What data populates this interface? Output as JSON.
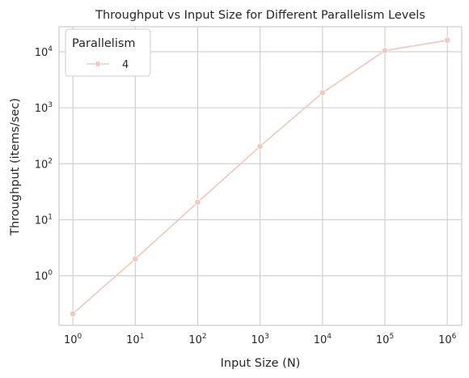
{
  "chart_data": {
    "type": "line",
    "title": "Throughput vs Input Size for Different Parallelism Levels",
    "xlabel": "Input Size (N)",
    "ylabel": "Throughput (items/sec)",
    "x_scale": "log",
    "y_scale": "log",
    "xlim": [
      0.6,
      1700000
    ],
    "ylim": [
      0.13,
      28000
    ],
    "x_ticks": [
      1,
      10,
      100,
      1000,
      10000,
      100000,
      1000000
    ],
    "y_ticks": [
      1,
      10,
      100,
      1000,
      10000
    ],
    "grid": true,
    "legend": {
      "title": "Parallelism",
      "placement": "top-left"
    },
    "series": [
      {
        "name": "4",
        "color": "#f0cbc1",
        "marker": "circle",
        "x": [
          1,
          10,
          100,
          1000,
          10000,
          100000,
          1000000
        ],
        "y": [
          0.21,
          2.0,
          20.5,
          205,
          1850,
          10500,
          16000
        ]
      }
    ]
  }
}
